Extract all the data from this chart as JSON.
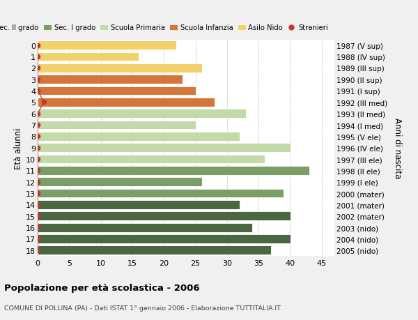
{
  "ages": [
    18,
    17,
    16,
    15,
    14,
    13,
    12,
    11,
    10,
    9,
    8,
    7,
    6,
    5,
    4,
    3,
    2,
    1,
    0
  ],
  "years": [
    "1987 (V sup)",
    "1988 (IV sup)",
    "1989 (III sup)",
    "1990 (II sup)",
    "1991 (I sup)",
    "1992 (III med)",
    "1993 (II med)",
    "1994 (I med)",
    "1995 (V ele)",
    "1996 (IV ele)",
    "1997 (III ele)",
    "1998 (II ele)",
    "1999 (I ele)",
    "2000 (mater)",
    "2001 (mater)",
    "2002 (mater)",
    "2003 (nido)",
    "2004 (nido)",
    "2005 (nido)"
  ],
  "values": [
    37,
    40,
    34,
    40,
    32,
    39,
    26,
    43,
    36,
    40,
    32,
    25,
    33,
    28,
    25,
    23,
    26,
    16,
    22
  ],
  "colors": [
    "#4a6741",
    "#4a6741",
    "#4a6741",
    "#4a6741",
    "#4a6741",
    "#7a9e65",
    "#7a9e65",
    "#7a9e65",
    "#c2d9a8",
    "#c2d9a8",
    "#c2d9a8",
    "#c2d9a8",
    "#c2d9a8",
    "#d4763b",
    "#d4763b",
    "#d4763b",
    "#f2d06b",
    "#f2d06b",
    "#f2d06b"
  ],
  "stranieri_vals": [
    0,
    0,
    0,
    0,
    0,
    0,
    0,
    0,
    0,
    0,
    0,
    0,
    0,
    1,
    0,
    0,
    0,
    0,
    0
  ],
  "legend_labels": [
    "Sec. II grado",
    "Sec. I grado",
    "Scuola Primaria",
    "Scuola Infanzia",
    "Asilo Nido",
    "Stranieri"
  ],
  "legend_colors": [
    "#4a6741",
    "#7a9e65",
    "#c2d9a8",
    "#d4763b",
    "#f2d06b",
    "#c0392b"
  ],
  "title_bold": "Popolazione per età scolastica - 2006",
  "subtitle": "COMUNE DI POLLINA (PA) - Dati ISTAT 1° gennaio 2006 - Elaborazione TUTTITALIA.IT",
  "ylabel_left": "Età alunni",
  "ylabel_right": "Anni di nascita",
  "xlim": [
    0,
    47
  ],
  "xticks": [
    0,
    5,
    10,
    15,
    20,
    25,
    30,
    35,
    40,
    45
  ],
  "bg_color": "#f0f0f0",
  "bar_bg_color": "#ffffff",
  "stranieri_color": "#c0392b"
}
